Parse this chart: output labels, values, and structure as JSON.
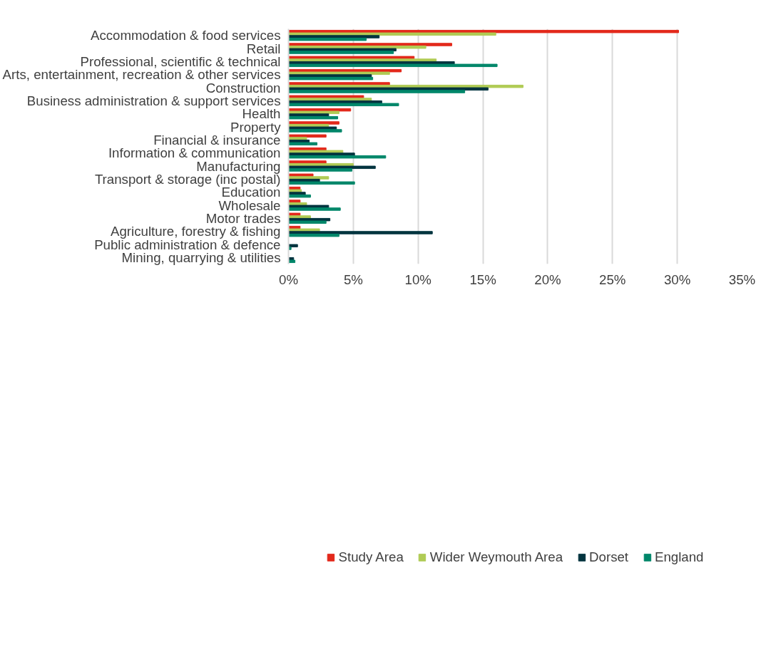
{
  "chart_data": {
    "type": "bar",
    "orientation": "horizontal",
    "categories": [
      "Accommodation & food services",
      "Retail",
      "Professional, scientific & technical",
      "Arts, entertainment, recreation & other services",
      "Construction",
      "Business administration & support services",
      "Health",
      "Property",
      "Financial & insurance",
      "Information & communication",
      "Manufacturing",
      "Transport & storage (inc postal)",
      "Education",
      "Wholesale",
      "Motor trades",
      "Agriculture, forestry & fishing",
      "Public administration & defence",
      "Mining, quarrying & utilities"
    ],
    "series": [
      {
        "name": "Study Area",
        "color": "#e3291b",
        "values": [
          30.1,
          12.6,
          9.7,
          8.7,
          7.8,
          5.8,
          4.8,
          3.9,
          2.9,
          2.9,
          2.9,
          1.9,
          0.9,
          0.9,
          0.9,
          0.9,
          0,
          0
        ]
      },
      {
        "name": "Wider Weymouth Area",
        "color": "#b0cb55",
        "values": [
          16.0,
          10.6,
          11.4,
          7.8,
          18.1,
          6.4,
          3.9,
          3.1,
          1.4,
          4.2,
          5.0,
          3.1,
          1.0,
          1.4,
          1.7,
          2.4,
          0,
          0
        ]
      },
      {
        "name": "Dorset",
        "color": "#02343f",
        "values": [
          7.0,
          8.3,
          12.8,
          6.4,
          15.4,
          7.2,
          3.1,
          3.7,
          1.6,
          5.1,
          6.7,
          2.4,
          1.3,
          3.1,
          3.2,
          11.1,
          0.7,
          0.4
        ]
      },
      {
        "name": "England",
        "color": "#00876a",
        "values": [
          6.0,
          8.1,
          16.1,
          6.5,
          13.6,
          8.5,
          3.8,
          4.1,
          2.2,
          7.5,
          4.9,
          5.1,
          1.7,
          4.0,
          2.9,
          3.9,
          0.2,
          0.5
        ]
      }
    ],
    "xlim": [
      0,
      35
    ],
    "xticks": [
      {
        "value": 0,
        "label": "0%"
      },
      {
        "value": 5,
        "label": "5%"
      },
      {
        "value": 10,
        "label": "10%"
      },
      {
        "value": 15,
        "label": "15%"
      },
      {
        "value": 20,
        "label": "20%"
      },
      {
        "value": 25,
        "label": "25%"
      },
      {
        "value": 30,
        "label": "30%"
      },
      {
        "value": 35,
        "label": "35%"
      }
    ],
    "grid": "x",
    "legend": "bottom"
  }
}
